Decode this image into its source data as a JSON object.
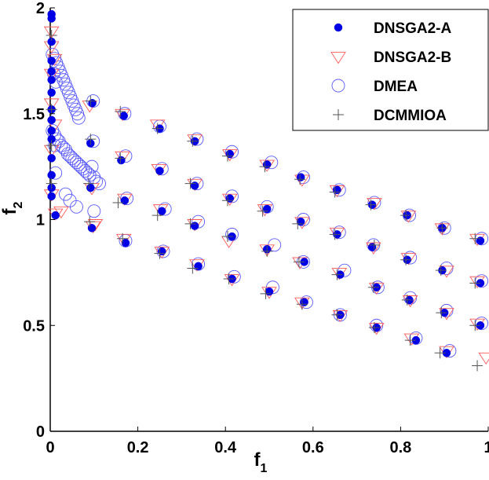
{
  "chart_data": {
    "type": "scatter",
    "title": "",
    "xlabel": "f",
    "xlabel_sub": "1",
    "ylabel": "f",
    "ylabel_sub": "2",
    "xlim": [
      0,
      1
    ],
    "ylim": [
      0,
      2
    ],
    "x_ticks": [
      0,
      0.2,
      0.4,
      0.6,
      0.8,
      1
    ],
    "x_tick_labels": [
      "0",
      "0.2",
      "0.4",
      "0.6",
      "0.8",
      "1"
    ],
    "y_ticks": [
      0,
      0.5,
      1,
      1.5,
      2
    ],
    "y_tick_labels": [
      "0",
      "0.5",
      "1",
      "1.5",
      "2"
    ],
    "grid": false,
    "legend_position": "top-right",
    "series": [
      {
        "name": "DNSGA2-A",
        "marker": "filled-circle",
        "color": "#0000e6",
        "points": [
          [
            0.003,
            1.97
          ],
          [
            0.003,
            1.95
          ],
          [
            0.003,
            1.84
          ],
          [
            0.003,
            1.75
          ],
          [
            0.003,
            1.7
          ],
          [
            0.003,
            1.66
          ],
          [
            0.003,
            1.6
          ],
          [
            0.003,
            1.52
          ],
          [
            0.003,
            1.47
          ],
          [
            0.003,
            1.42
          ],
          [
            0.003,
            1.38
          ],
          [
            0.003,
            1.29
          ],
          [
            0.003,
            1.21
          ],
          [
            0.003,
            1.15
          ],
          [
            0.003,
            1.11
          ],
          [
            0.012,
            1.02
          ],
          [
            0.092,
            1.36
          ],
          [
            0.092,
            1.15
          ],
          [
            0.095,
            0.96
          ],
          [
            0.096,
            1.55
          ],
          [
            0.162,
            1.28
          ],
          [
            0.168,
            1.49
          ],
          [
            0.17,
            1.09
          ],
          [
            0.172,
            0.89
          ],
          [
            0.25,
            1.43
          ],
          [
            0.25,
            1.23
          ],
          [
            0.255,
            1.04
          ],
          [
            0.255,
            0.85
          ],
          [
            0.33,
            1.37
          ],
          [
            0.33,
            1.16
          ],
          [
            0.33,
            0.97
          ],
          [
            0.338,
            0.78
          ],
          [
            0.41,
            1.31
          ],
          [
            0.41,
            1.1
          ],
          [
            0.415,
            0.92
          ],
          [
            0.415,
            0.72
          ],
          [
            0.495,
            1.26
          ],
          [
            0.495,
            1.05
          ],
          [
            0.495,
            0.86
          ],
          [
            0.5,
            0.66
          ],
          [
            0.572,
            1.2
          ],
          [
            0.572,
            0.99
          ],
          [
            0.58,
            0.8
          ],
          [
            0.58,
            0.61
          ],
          [
            0.655,
            1.14
          ],
          [
            0.655,
            0.93
          ],
          [
            0.662,
            0.74
          ],
          [
            0.662,
            0.55
          ],
          [
            0.735,
            1.07
          ],
          [
            0.735,
            0.87
          ],
          [
            0.745,
            0.68
          ],
          [
            0.745,
            0.49
          ],
          [
            0.815,
            1.02
          ],
          [
            0.815,
            0.81
          ],
          [
            0.82,
            0.62
          ],
          [
            0.835,
            0.43
          ],
          [
            0.895,
            0.96
          ],
          [
            0.895,
            0.76
          ],
          [
            0.9,
            0.56
          ],
          [
            0.905,
            0.37
          ],
          [
            0.982,
            0.9
          ],
          [
            0.982,
            0.7
          ],
          [
            0.982,
            0.5
          ]
        ]
      },
      {
        "name": "DNSGA2-B",
        "marker": "down-triangle",
        "color": "#ff5a5a",
        "points": [
          [
            0.003,
            1.89
          ],
          [
            0.003,
            1.82
          ],
          [
            0.003,
            1.69
          ],
          [
            0.003,
            1.55
          ],
          [
            0.003,
            1.33
          ],
          [
            0.003,
            1.12
          ],
          [
            0.01,
            1.76
          ],
          [
            0.01,
            1.45
          ],
          [
            0.012,
            1.03
          ],
          [
            0.025,
            1.04
          ],
          [
            0.09,
            1.54
          ],
          [
            0.095,
            1.15
          ],
          [
            0.098,
            0.97
          ],
          [
            0.103,
            0.98
          ],
          [
            0.165,
            1.5
          ],
          [
            0.165,
            1.3
          ],
          [
            0.17,
            1.1
          ],
          [
            0.168,
            0.91
          ],
          [
            0.245,
            1.45
          ],
          [
            0.248,
            1.24
          ],
          [
            0.252,
            1.05
          ],
          [
            0.255,
            0.85
          ],
          [
            0.33,
            1.38
          ],
          [
            0.33,
            1.17
          ],
          [
            0.33,
            0.98
          ],
          [
            0.335,
            0.79
          ],
          [
            0.41,
            1.31
          ],
          [
            0.41,
            1.1
          ],
          [
            0.408,
            0.9
          ],
          [
            0.415,
            0.72
          ],
          [
            0.495,
            1.26
          ],
          [
            0.49,
            1.05
          ],
          [
            0.495,
            0.86
          ],
          [
            0.5,
            0.66
          ],
          [
            0.575,
            1.19
          ],
          [
            0.575,
            0.99
          ],
          [
            0.57,
            0.8
          ],
          [
            0.575,
            0.61
          ],
          [
            0.655,
            1.14
          ],
          [
            0.655,
            0.94
          ],
          [
            0.66,
            0.75
          ],
          [
            0.662,
            0.55
          ],
          [
            0.74,
            1.08
          ],
          [
            0.738,
            0.87
          ],
          [
            0.745,
            0.68
          ],
          [
            0.745,
            0.49
          ],
          [
            0.818,
            1.02
          ],
          [
            0.818,
            0.82
          ],
          [
            0.822,
            0.62
          ],
          [
            0.825,
            0.44
          ],
          [
            0.895,
            0.96
          ],
          [
            0.905,
            0.76
          ],
          [
            0.905,
            0.56
          ],
          [
            0.905,
            0.38
          ],
          [
            0.975,
            0.91
          ],
          [
            0.975,
            0.71
          ],
          [
            0.975,
            0.51
          ],
          [
            0.995,
            0.35
          ]
        ]
      },
      {
        "name": "DMEA",
        "marker": "open-circle",
        "color": "#5a5aff",
        "points": [
          [
            0.005,
            1.78
          ],
          [
            0.01,
            1.76
          ],
          [
            0.014,
            1.74
          ],
          [
            0.018,
            1.72
          ],
          [
            0.022,
            1.7
          ],
          [
            0.026,
            1.68
          ],
          [
            0.03,
            1.66
          ],
          [
            0.034,
            1.64
          ],
          [
            0.038,
            1.62
          ],
          [
            0.042,
            1.6
          ],
          [
            0.046,
            1.58
          ],
          [
            0.05,
            1.56
          ],
          [
            0.054,
            1.54
          ],
          [
            0.058,
            1.52
          ],
          [
            0.062,
            1.5
          ],
          [
            0.065,
            1.48
          ],
          [
            0.008,
            1.69
          ],
          [
            0.013,
            1.65
          ],
          [
            0.005,
            1.42
          ],
          [
            0.01,
            1.4
          ],
          [
            0.015,
            1.38
          ],
          [
            0.02,
            1.37
          ],
          [
            0.025,
            1.35
          ],
          [
            0.03,
            1.34
          ],
          [
            0.035,
            1.33
          ],
          [
            0.04,
            1.31
          ],
          [
            0.045,
            1.3
          ],
          [
            0.05,
            1.29
          ],
          [
            0.055,
            1.28
          ],
          [
            0.06,
            1.27
          ],
          [
            0.065,
            1.26
          ],
          [
            0.07,
            1.25
          ],
          [
            0.075,
            1.24
          ],
          [
            0.08,
            1.23
          ],
          [
            0.085,
            1.22
          ],
          [
            0.09,
            1.21
          ],
          [
            0.095,
            1.25
          ],
          [
            0.1,
            1.2
          ],
          [
            0.105,
            1.18
          ],
          [
            0.112,
            1.17
          ],
          [
            0.035,
            1.12
          ],
          [
            0.045,
            1.09
          ],
          [
            0.06,
            1.06
          ],
          [
            0.1,
            1.04
          ],
          [
            0.098,
            1.37
          ],
          [
            0.012,
            1.22
          ],
          [
            0.01,
            1.35
          ],
          [
            0.098,
            1.56
          ],
          [
            0.17,
            1.5
          ],
          [
            0.172,
            1.3
          ],
          [
            0.175,
            1.1
          ],
          [
            0.172,
            0.9
          ],
          [
            0.25,
            1.44
          ],
          [
            0.255,
            1.24
          ],
          [
            0.262,
            1.05
          ],
          [
            0.258,
            0.85
          ],
          [
            0.335,
            1.38
          ],
          [
            0.335,
            1.17
          ],
          [
            0.338,
            0.99
          ],
          [
            0.338,
            0.79
          ],
          [
            0.415,
            1.32
          ],
          [
            0.415,
            1.11
          ],
          [
            0.415,
            0.93
          ],
          [
            0.42,
            0.73
          ],
          [
            0.505,
            1.27
          ],
          [
            0.495,
            1.06
          ],
          [
            0.512,
            0.88
          ],
          [
            0.508,
            0.68
          ],
          [
            0.578,
            1.2
          ],
          [
            0.578,
            1.0
          ],
          [
            0.578,
            0.8
          ],
          [
            0.585,
            0.61
          ],
          [
            0.66,
            1.14
          ],
          [
            0.66,
            0.94
          ],
          [
            0.672,
            0.76
          ],
          [
            0.662,
            0.55
          ],
          [
            0.74,
            1.08
          ],
          [
            0.738,
            0.88
          ],
          [
            0.748,
            0.68
          ],
          [
            0.745,
            0.5
          ],
          [
            0.82,
            1.02
          ],
          [
            0.822,
            0.82
          ],
          [
            0.822,
            0.63
          ],
          [
            0.835,
            0.44
          ],
          [
            0.9,
            0.96
          ],
          [
            0.905,
            0.77
          ],
          [
            0.905,
            0.57
          ],
          [
            0.912,
            0.38
          ],
          [
            0.985,
            0.91
          ],
          [
            0.985,
            0.71
          ],
          [
            0.985,
            0.51
          ]
        ]
      },
      {
        "name": "DCMMIOA",
        "marker": "plus",
        "color": "#555555",
        "points": [
          [
            0.003,
            1.87
          ],
          [
            0.003,
            1.52
          ],
          [
            0.003,
            1.35
          ],
          [
            0.003,
            1.17
          ],
          [
            0.092,
            1.38
          ],
          [
            0.088,
            1.17
          ],
          [
            0.092,
            1.56
          ],
          [
            0.09,
            0.99
          ],
          [
            0.16,
            1.51
          ],
          [
            0.16,
            1.29
          ],
          [
            0.155,
            1.08
          ],
          [
            0.165,
            0.91
          ],
          [
            0.245,
            1.43
          ],
          [
            0.245,
            1.02
          ],
          [
            0.25,
            0.84
          ],
          [
            0.325,
            1.37
          ],
          [
            0.32,
            1.17
          ],
          [
            0.32,
            0.98
          ],
          [
            0.325,
            0.77
          ],
          [
            0.405,
            1.3
          ],
          [
            0.405,
            1.09
          ],
          [
            0.405,
            0.92
          ],
          [
            0.408,
            0.72
          ],
          [
            0.49,
            1.25
          ],
          [
            0.485,
            1.04
          ],
          [
            0.495,
            0.85
          ],
          [
            0.492,
            0.65
          ],
          [
            0.57,
            1.19
          ],
          [
            0.565,
            0.98
          ],
          [
            0.568,
            0.8
          ],
          [
            0.575,
            0.6
          ],
          [
            0.65,
            1.13
          ],
          [
            0.65,
            0.93
          ],
          [
            0.655,
            0.74
          ],
          [
            0.655,
            0.55
          ],
          [
            0.732,
            1.07
          ],
          [
            0.74,
            0.88
          ],
          [
            0.738,
            0.68
          ],
          [
            0.74,
            0.49
          ],
          [
            0.812,
            1.02
          ],
          [
            0.812,
            0.81
          ],
          [
            0.815,
            0.62
          ],
          [
            0.822,
            0.43
          ],
          [
            0.895,
            0.96
          ],
          [
            0.892,
            0.76
          ],
          [
            0.893,
            0.56
          ],
          [
            0.89,
            0.37
          ],
          [
            0.97,
            0.91
          ],
          [
            0.97,
            0.7
          ],
          [
            0.97,
            0.5
          ],
          [
            0.975,
            0.31
          ]
        ]
      }
    ]
  }
}
